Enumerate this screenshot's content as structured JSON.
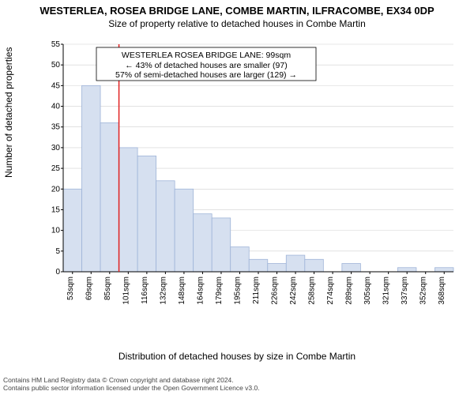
{
  "title": "WESTERLEA, ROSEA BRIDGE LANE, COMBE MARTIN, ILFRACOMBE, EX34 0DP",
  "subtitle": "Size of property relative to detached houses in Combe Martin",
  "ylabel": "Number of detached properties",
  "xlabel": "Distribution of detached houses by size in Combe Martin",
  "footer_line1": "Contains HM Land Registry data © Crown copyright and database right 2024.",
  "footer_line2": "Contains public sector information licensed under the Open Government Licence v3.0.",
  "chart": {
    "type": "histogram",
    "ylim": [
      0,
      55
    ],
    "ytick_step": 5,
    "bar_fill": "#d6e0f0",
    "bar_stroke": "#9fb4d8",
    "grid_color": "#d0d0d0",
    "axis_color": "#000000",
    "redline_color": "#e02020",
    "redline_x_index": 3,
    "background": "#ffffff",
    "title_fontsize": 13,
    "subtitle_fontsize": 12,
    "label_fontsize": 12,
    "tick_fontsize": 10,
    "categories": [
      "53sqm",
      "69sqm",
      "85sqm",
      "101sqm",
      "116sqm",
      "132sqm",
      "148sqm",
      "164sqm",
      "179sqm",
      "195sqm",
      "211sqm",
      "226sqm",
      "242sqm",
      "258sqm",
      "274sqm",
      "289sqm",
      "305sqm",
      "321sqm",
      "337sqm",
      "352sqm",
      "368sqm"
    ],
    "values": [
      20,
      45,
      36,
      30,
      28,
      22,
      20,
      14,
      13,
      6,
      3,
      2,
      4,
      3,
      0,
      2,
      0,
      0,
      1,
      0,
      1
    ],
    "annotation": {
      "line1": "WESTERLEA ROSEA BRIDGE LANE: 99sqm",
      "line2": "← 43% of detached houses are smaller (97)",
      "line3": "57% of semi-detached houses are larger (129) →",
      "box_stroke": "#000000",
      "box_fill": "#ffffff"
    }
  }
}
